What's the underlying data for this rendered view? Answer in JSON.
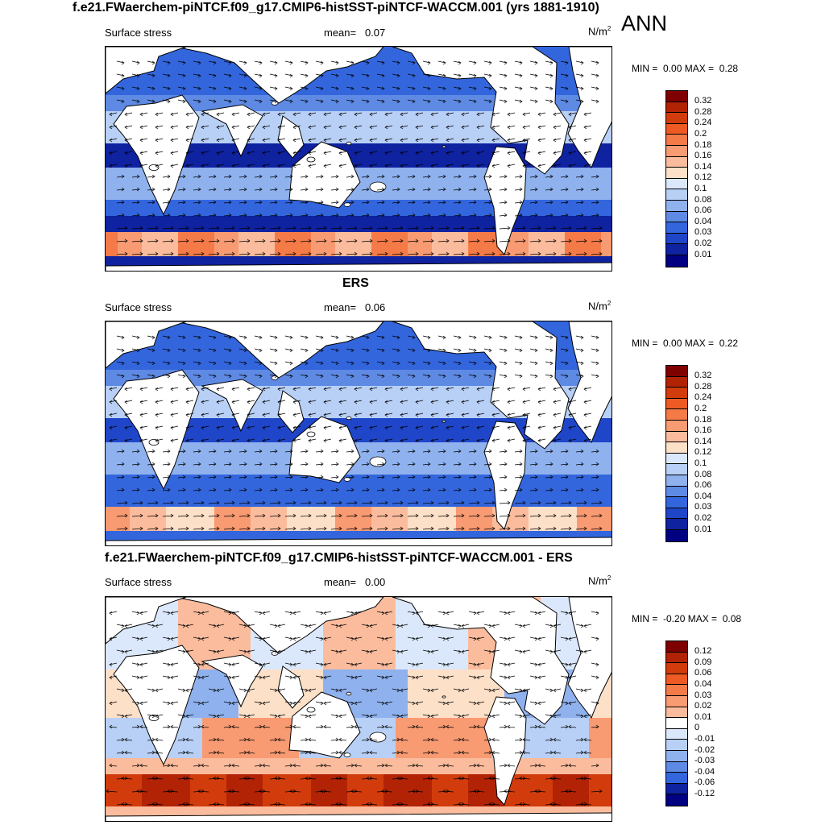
{
  "header": {
    "main_title": "f.e21.FWaerchem-piNTCF.f09_g17.CMIP6-histSST-piNTCF-WACCM.001 (yrs 1881-1910)",
    "season": "ANN"
  },
  "panels": [
    {
      "title": "",
      "variable": "Surface stress",
      "mean_label": "mean=",
      "mean_value": "0.07",
      "units_base": "N/m",
      "units_exp": "2",
      "min_label": "MIN =",
      "min_value": "0.00",
      "max_label": "MAX =",
      "max_value": "0.28",
      "colorbar_ticks": [
        "0.32",
        "0.28",
        "0.24",
        "0.2",
        "0.18",
        "0.16",
        "0.14",
        "0.12",
        "0.1",
        "0.08",
        "0.06",
        "0.04",
        "0.03",
        "0.02",
        "0.01"
      ]
    },
    {
      "title": "ERS",
      "variable": "Surface stress",
      "mean_label": "mean=",
      "mean_value": "0.06",
      "units_base": "N/m",
      "units_exp": "2",
      "min_label": "MIN =",
      "min_value": "0.00",
      "max_label": "MAX =",
      "max_value": "0.22",
      "colorbar_ticks": [
        "0.32",
        "0.28",
        "0.24",
        "0.2",
        "0.18",
        "0.16",
        "0.14",
        "0.12",
        "0.1",
        "0.08",
        "0.06",
        "0.04",
        "0.03",
        "0.02",
        "0.01"
      ]
    },
    {
      "title": "f.e21.FWaerchem-piNTCF.f09_g17.CMIP6-histSST-piNTCF-WACCM.001 - ERS",
      "variable": "Surface stress",
      "mean_label": "mean=",
      "mean_value": "0.00",
      "units_base": "N/m",
      "units_exp": "2",
      "min_label": "MIN =",
      "min_value": "-0.20",
      "max_label": "MAX =",
      "max_value": "0.08",
      "colorbar_ticks": [
        "0.12",
        "0.09",
        "0.06",
        "0.04",
        "0.03",
        "0.02",
        "0.01",
        "0",
        "-0.01",
        "-0.02",
        "-0.03",
        "-0.04",
        "-0.06",
        "-0.12"
      ]
    }
  ],
  "colors": {
    "abs_scale": [
      "#7f0000",
      "#b22306",
      "#d23c0c",
      "#ee5a24",
      "#f47a48",
      "#f89a72",
      "#fbbc9d",
      "#fde0c8",
      "#dbe8fb",
      "#b8d0f6",
      "#8fb1ee",
      "#5e8ae4",
      "#3366dd",
      "#1f45c8",
      "#0f22a0",
      "#000080"
    ],
    "diff_scale": [
      "#7f0000",
      "#b22306",
      "#d23c0c",
      "#ee5a24",
      "#f47a48",
      "#f89a72",
      "#fbbc9d",
      "#fde0c8",
      "#ffffff",
      "#dbe8fb",
      "#b8d0f6",
      "#8fb1ee",
      "#5e8ae4",
      "#3366dd",
      "#0f22a0",
      "#000080"
    ],
    "land": "#ffffff",
    "coast": "#000000"
  }
}
